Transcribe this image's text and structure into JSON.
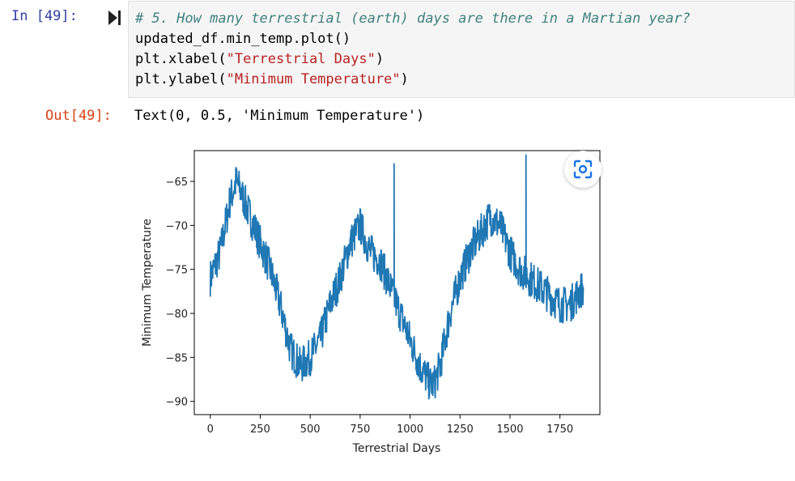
{
  "input_cell": {
    "prompt": "In [49]:",
    "code": {
      "comment": "# 5. How many terrestrial (earth) days are there in a Martian year?",
      "line2": "updated_df.min_temp.plot()",
      "line3_pre": "plt.xlabel(",
      "line3_str": "\"Terrestrial Days\"",
      "line3_post": ")",
      "line4_pre": "plt.ylabel(",
      "line4_str": "\"Minimum Temperature\"",
      "line4_post": ")"
    }
  },
  "output_cell": {
    "prompt": "Out[49]:",
    "text": "Text(0, 0.5, 'Minimum Temperature')"
  },
  "icons": {
    "run": "run-cell-icon",
    "lens": "google-lens-icon"
  },
  "chart_data": {
    "type": "line",
    "xlabel": "Terrestrial Days",
    "ylabel": "Minimum Temperature",
    "xlim": [
      -80,
      1950
    ],
    "ylim": [
      -91.5,
      -61.5
    ],
    "xticks": [
      0,
      250,
      500,
      750,
      1000,
      1250,
      1500,
      1750
    ],
    "yticks": [
      -90,
      -85,
      -80,
      -75,
      -70,
      -65
    ],
    "line_color": "#1f77b4",
    "series": [
      {
        "x": [
          0,
          50,
          100,
          130,
          150,
          200,
          250,
          300,
          350,
          400,
          450,
          500,
          550,
          600,
          650,
          700,
          750,
          800,
          850,
          900,
          950,
          1000,
          1050,
          1100,
          1120,
          1150,
          1200,
          1250,
          1300,
          1350,
          1400,
          1450,
          1500,
          1550,
          1600,
          1650,
          1700,
          1750,
          1800,
          1867
        ],
        "y": [
          -76,
          -73,
          -67,
          -65,
          -66,
          -69,
          -72,
          -75,
          -79,
          -84,
          -86,
          -85,
          -83,
          -79,
          -76,
          -72,
          -70,
          -73,
          -74,
          -77,
          -80,
          -83,
          -86,
          -88,
          -88,
          -86,
          -80,
          -76,
          -73,
          -71,
          -69,
          -70,
          -73,
          -75,
          -76,
          -77,
          -78,
          -79,
          -79,
          -77
        ]
      }
    ],
    "spikes": [
      {
        "x": 920,
        "y": -63
      },
      {
        "x": 1580,
        "y": -62
      }
    ]
  }
}
